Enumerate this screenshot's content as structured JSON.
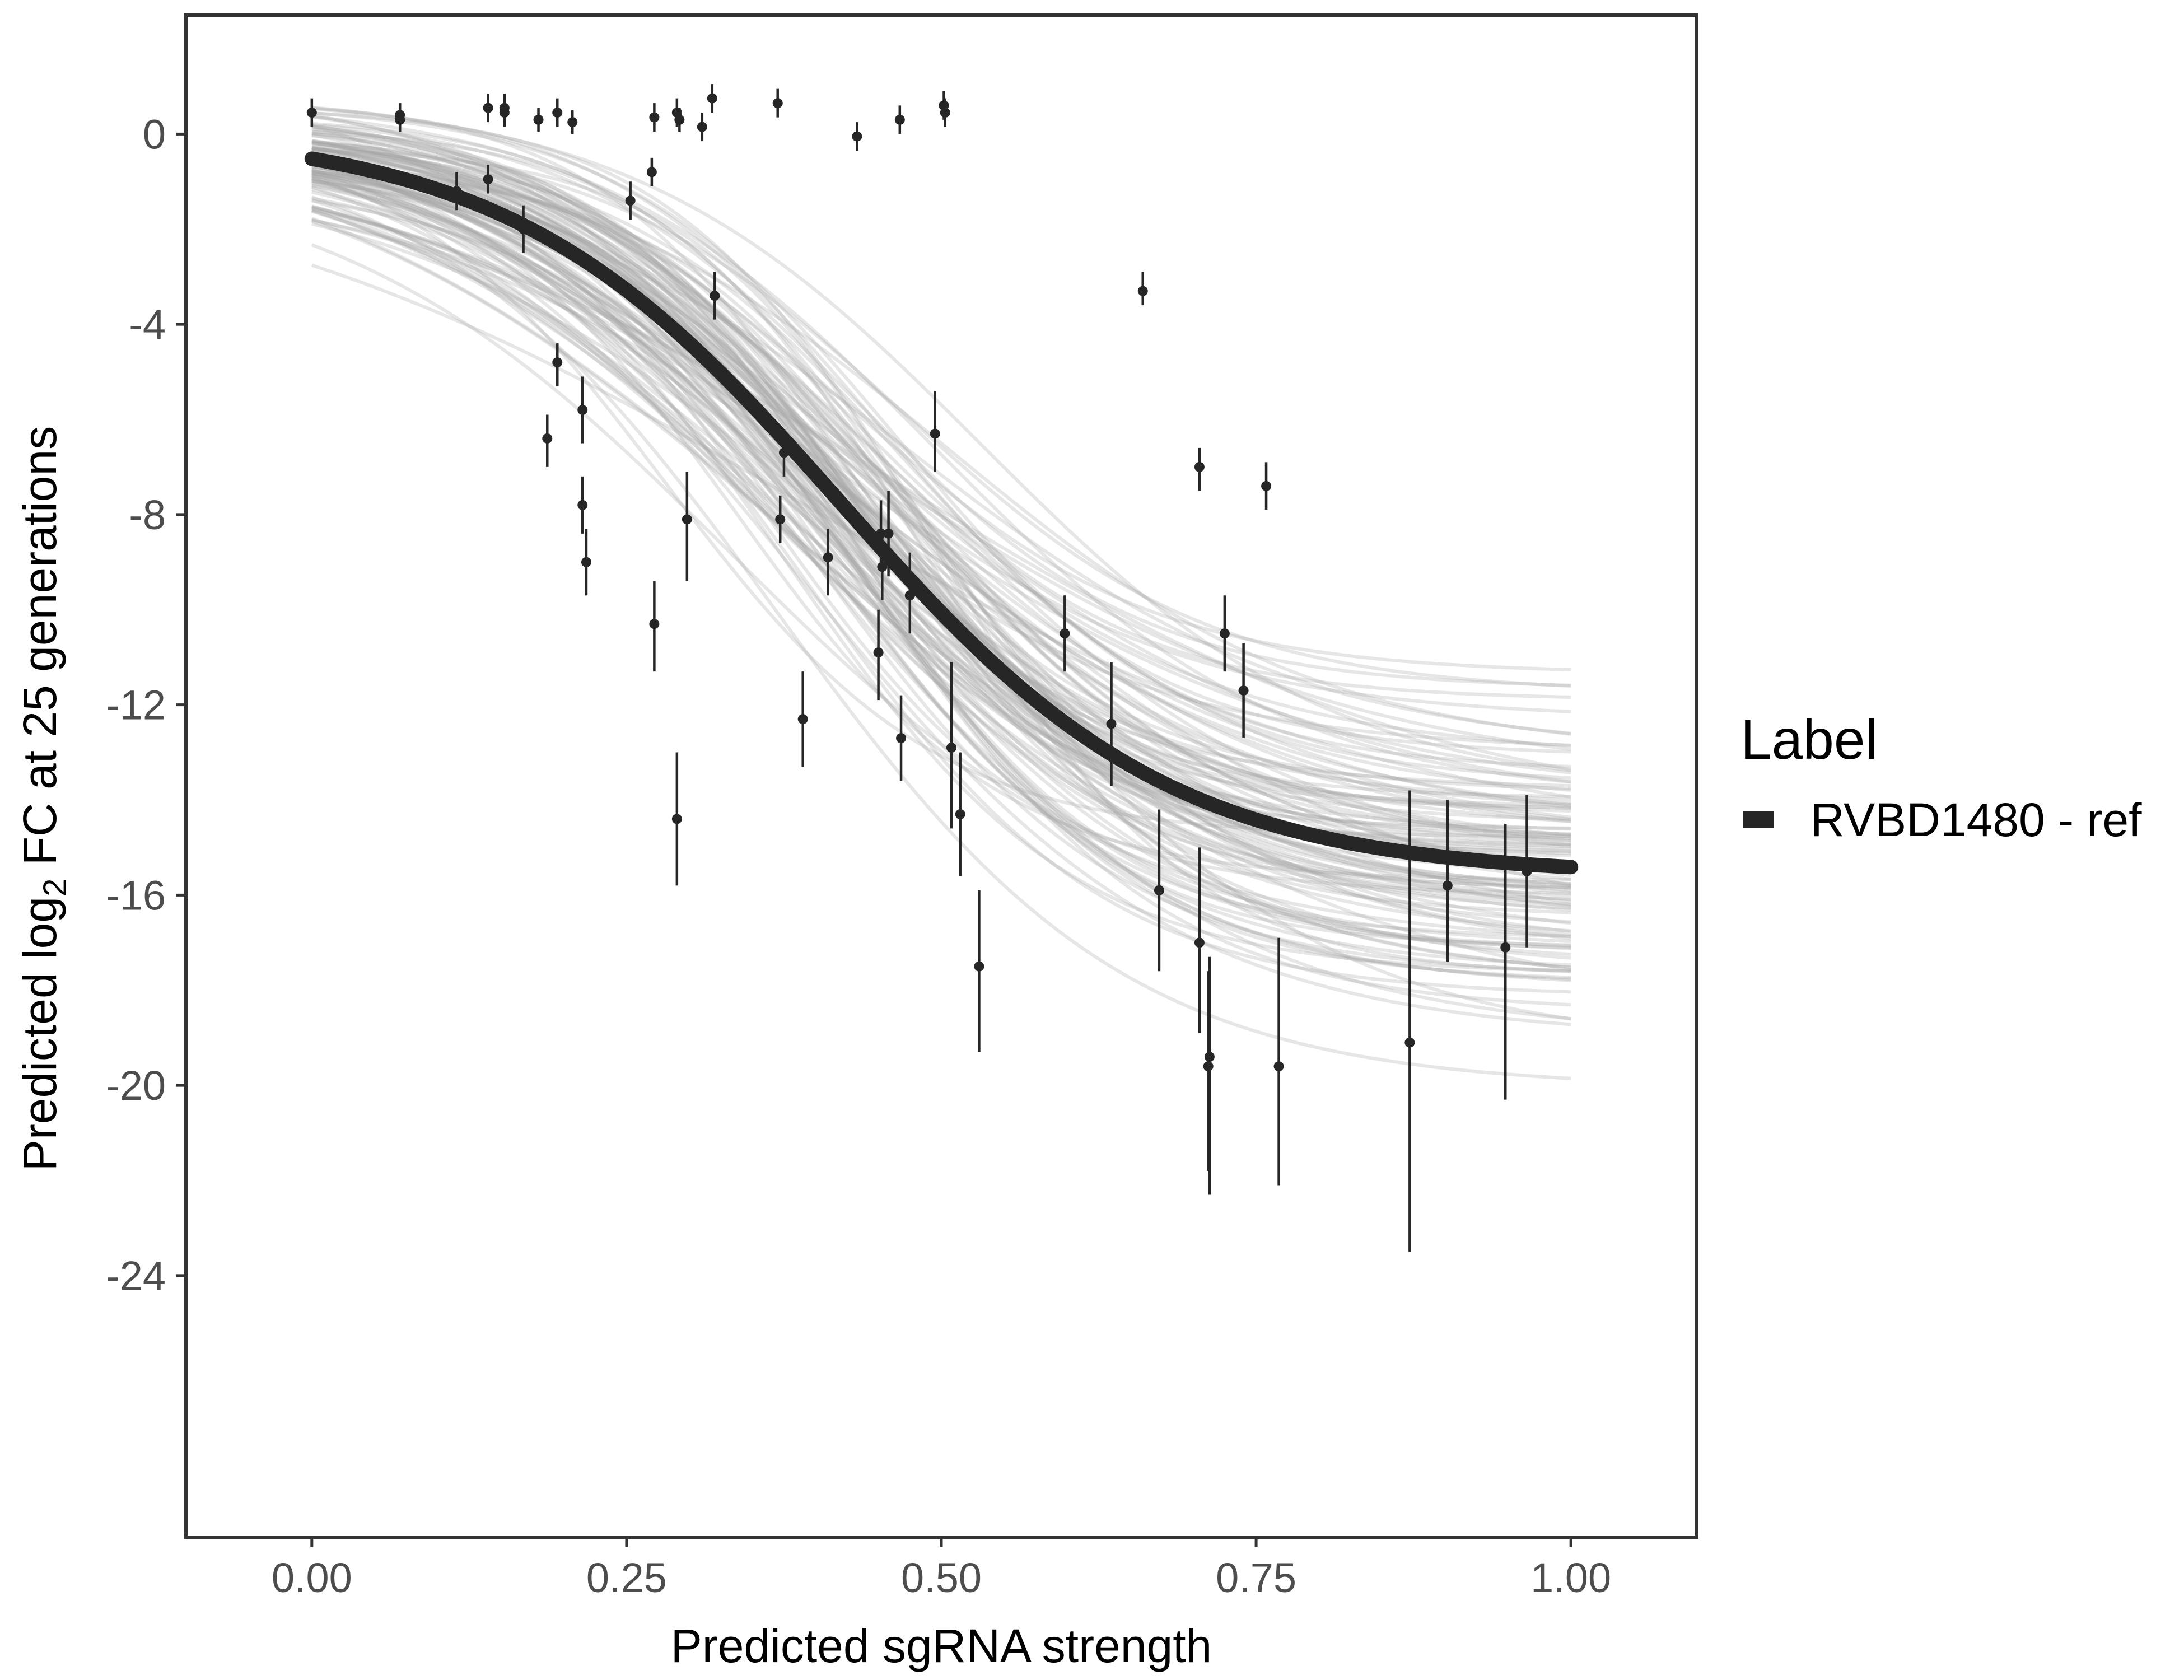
{
  "chart_data": {
    "type": "line",
    "title": "",
    "xlabel": "Predicted sgRNA strength",
    "ylabel_parts": {
      "prefix": "Predicted  log",
      "subscript": "2",
      "suffix": " FC at 25 generations"
    },
    "xlim": [
      -0.1,
      1.1
    ],
    "ylim": [
      -29.5,
      2.5
    ],
    "x_ticks": [
      0.0,
      0.25,
      0.5,
      0.75,
      1.0
    ],
    "x_tick_labels": [
      "0.00",
      "0.25",
      "0.50",
      "0.75",
      "1.00"
    ],
    "y_ticks": [
      0,
      -4,
      -8,
      -12,
      -16,
      -20,
      -24
    ],
    "y_tick_labels": [
      "0",
      "-4",
      "-8",
      "-12",
      "-16",
      "-20",
      "-24"
    ],
    "grid": false,
    "legend": {
      "title": "Label",
      "position": "right",
      "entries": [
        {
          "label": "RVBD1480 - ref",
          "color": "#262626"
        }
      ]
    },
    "fit_line": {
      "name": "RVBD1480 - ref",
      "color": "#262626",
      "model": "logistic",
      "upper": 0.1,
      "lower": -15.6,
      "midpoint": 0.42,
      "rate": 7.6
    },
    "posterior_band": {
      "color": "#a6a6a6",
      "n_draws": 120
    },
    "points": [
      {
        "x": 0.0,
        "y": 0.45,
        "lo": 0.15,
        "hi": 0.75
      },
      {
        "x": 0.07,
        "y": 0.4,
        "lo": 0.15,
        "hi": 0.65
      },
      {
        "x": 0.07,
        "y": 0.3,
        "lo": 0.05,
        "hi": 0.55
      },
      {
        "x": 0.115,
        "y": -1.2,
        "lo": -1.6,
        "hi": -0.8
      },
      {
        "x": 0.14,
        "y": 0.55,
        "lo": 0.25,
        "hi": 0.85
      },
      {
        "x": 0.14,
        "y": -0.95,
        "lo": -1.25,
        "hi": -0.65
      },
      {
        "x": 0.153,
        "y": 0.55,
        "lo": 0.25,
        "hi": 0.85
      },
      {
        "x": 0.153,
        "y": 0.45,
        "lo": 0.15,
        "hi": 0.75
      },
      {
        "x": 0.168,
        "y": -2.0,
        "lo": -2.5,
        "hi": -1.5
      },
      {
        "x": 0.18,
        "y": 0.3,
        "lo": 0.05,
        "hi": 0.55
      },
      {
        "x": 0.187,
        "y": -6.4,
        "lo": -7.0,
        "hi": -5.9
      },
      {
        "x": 0.195,
        "y": -4.8,
        "lo": -5.3,
        "hi": -4.4
      },
      {
        "x": 0.195,
        "y": 0.45,
        "lo": 0.15,
        "hi": 0.75
      },
      {
        "x": 0.207,
        "y": 0.25,
        "lo": 0.0,
        "hi": 0.5
      },
      {
        "x": 0.215,
        "y": -5.8,
        "lo": -6.5,
        "hi": -5.1
      },
      {
        "x": 0.215,
        "y": -7.8,
        "lo": -8.4,
        "hi": -7.2
      },
      {
        "x": 0.218,
        "y": -9.0,
        "lo": -9.7,
        "hi": -8.3
      },
      {
        "x": 0.253,
        "y": -1.4,
        "lo": -1.8,
        "hi": -1.0
      },
      {
        "x": 0.27,
        "y": -0.8,
        "lo": -1.1,
        "hi": -0.5
      },
      {
        "x": 0.272,
        "y": 0.35,
        "lo": 0.05,
        "hi": 0.65
      },
      {
        "x": 0.272,
        "y": -10.3,
        "lo": -11.3,
        "hi": -9.4
      },
      {
        "x": 0.29,
        "y": 0.45,
        "lo": 0.15,
        "hi": 0.75
      },
      {
        "x": 0.29,
        "y": -14.4,
        "lo": -15.8,
        "hi": -13.0
      },
      {
        "x": 0.292,
        "y": 0.3,
        "lo": 0.05,
        "hi": 0.55
      },
      {
        "x": 0.298,
        "y": -8.1,
        "lo": -9.4,
        "hi": -7.1
      },
      {
        "x": 0.31,
        "y": 0.15,
        "lo": -0.15,
        "hi": 0.45
      },
      {
        "x": 0.318,
        "y": 0.75,
        "lo": 0.45,
        "hi": 1.05
      },
      {
        "x": 0.32,
        "y": -3.4,
        "lo": -3.9,
        "hi": -2.9
      },
      {
        "x": 0.37,
        "y": 0.65,
        "lo": 0.35,
        "hi": 0.95
      },
      {
        "x": 0.372,
        "y": -8.1,
        "lo": -8.6,
        "hi": -7.6
      },
      {
        "x": 0.375,
        "y": -6.7,
        "lo": -7.2,
        "hi": -6.2
      },
      {
        "x": 0.39,
        "y": -12.3,
        "lo": -13.3,
        "hi": -11.3
      },
      {
        "x": 0.41,
        "y": -8.9,
        "lo": -9.7,
        "hi": -8.3
      },
      {
        "x": 0.433,
        "y": -0.05,
        "lo": -0.35,
        "hi": 0.25
      },
      {
        "x": 0.45,
        "y": -10.9,
        "lo": -11.9,
        "hi": -10.0
      },
      {
        "x": 0.452,
        "y": -8.4,
        "lo": -9.1,
        "hi": -7.7
      },
      {
        "x": 0.453,
        "y": -9.1,
        "lo": -9.8,
        "hi": -8.4
      },
      {
        "x": 0.458,
        "y": -8.4,
        "lo": -9.3,
        "hi": -7.5
      },
      {
        "x": 0.467,
        "y": 0.3,
        "lo": 0.0,
        "hi": 0.6
      },
      {
        "x": 0.468,
        "y": -12.7,
        "lo": -13.6,
        "hi": -11.8
      },
      {
        "x": 0.475,
        "y": -9.7,
        "lo": -10.5,
        "hi": -8.8
      },
      {
        "x": 0.495,
        "y": -6.3,
        "lo": -7.1,
        "hi": -5.4
      },
      {
        "x": 0.502,
        "y": 0.6,
        "lo": 0.3,
        "hi": 0.9
      },
      {
        "x": 0.503,
        "y": 0.45,
        "lo": 0.15,
        "hi": 0.75
      },
      {
        "x": 0.508,
        "y": -12.9,
        "lo": -14.6,
        "hi": -11.1
      },
      {
        "x": 0.515,
        "y": -14.3,
        "lo": -15.6,
        "hi": -13.0
      },
      {
        "x": 0.53,
        "y": -17.5,
        "lo": -19.3,
        "hi": -15.9
      },
      {
        "x": 0.598,
        "y": -10.5,
        "lo": -11.3,
        "hi": -9.7
      },
      {
        "x": 0.635,
        "y": -12.4,
        "lo": -13.7,
        "hi": -11.1
      },
      {
        "x": 0.66,
        "y": -3.3,
        "lo": -3.6,
        "hi": -2.9
      },
      {
        "x": 0.673,
        "y": -15.9,
        "lo": -17.6,
        "hi": -14.2
      },
      {
        "x": 0.705,
        "y": -7.0,
        "lo": -7.5,
        "hi": -6.6
      },
      {
        "x": 0.705,
        "y": -17.0,
        "lo": -18.9,
        "hi": -15.0
      },
      {
        "x": 0.712,
        "y": -19.6,
        "lo": -21.8,
        "hi": -17.6
      },
      {
        "x": 0.713,
        "y": -19.4,
        "lo": -22.3,
        "hi": -17.3
      },
      {
        "x": 0.725,
        "y": -10.5,
        "lo": -11.3,
        "hi": -9.7
      },
      {
        "x": 0.74,
        "y": -11.7,
        "lo": -12.7,
        "hi": -10.7
      },
      {
        "x": 0.758,
        "y": -7.4,
        "lo": -7.9,
        "hi": -6.9
      },
      {
        "x": 0.768,
        "y": -19.6,
        "lo": -22.1,
        "hi": -16.9
      },
      {
        "x": 0.872,
        "y": -19.1,
        "lo": -23.5,
        "hi": -13.8
      },
      {
        "x": 0.902,
        "y": -15.8,
        "lo": -17.4,
        "hi": -14.0
      },
      {
        "x": 0.948,
        "y": -17.1,
        "lo": -20.3,
        "hi": -14.5
      },
      {
        "x": 0.965,
        "y": -15.5,
        "lo": -17.1,
        "hi": -13.9
      }
    ]
  }
}
